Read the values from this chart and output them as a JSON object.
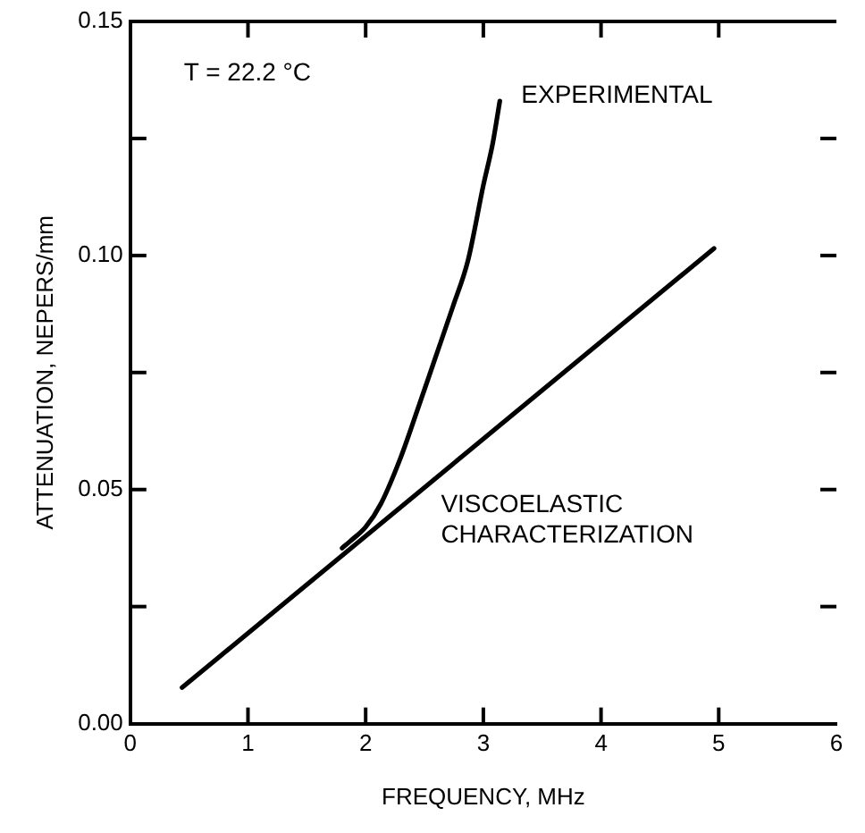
{
  "chart_data": {
    "type": "line",
    "xlabel": "FREQUENCY, MHz",
    "ylabel": "ATTENUATION, NEPERS/mm",
    "xlim": [
      0,
      6
    ],
    "xticks": [
      0,
      1,
      2,
      3,
      4,
      5,
      6
    ],
    "ylim": [
      0,
      0.15
    ],
    "yticks": [
      {
        "value": 0,
        "label": "0.00"
      },
      {
        "value": 0.025,
        "label": null
      },
      {
        "value": 0.05,
        "label": "0.05"
      },
      {
        "value": 0.075,
        "label": null
      },
      {
        "value": 0.1,
        "label": "0.10"
      },
      {
        "value": 0.125,
        "label": null
      },
      {
        "value": 0.15,
        "label": "0.15"
      }
    ],
    "marker": "none",
    "line_style": "solid",
    "legend": false,
    "series": [
      {
        "name": "EXPERIMENTAL",
        "color": "#000000",
        "x": [
          1.8,
          1.87,
          2.0,
          2.13,
          2.3,
          2.44,
          2.59,
          2.74,
          2.87,
          3.0,
          3.08,
          3.14
        ],
        "values": [
          0.0375,
          0.039,
          0.042,
          0.047,
          0.057,
          0.067,
          0.078,
          0.089,
          0.099,
          0.115,
          0.124,
          0.133
        ]
      },
      {
        "name": "VISCOELASTIC\nCHARACTERIZATION",
        "color": "#000000",
        "x": [
          0.44,
          4.96
        ],
        "values": [
          0.0077,
          0.1015
        ]
      }
    ],
    "annotations": [
      "T = 22.2 °C"
    ]
  }
}
